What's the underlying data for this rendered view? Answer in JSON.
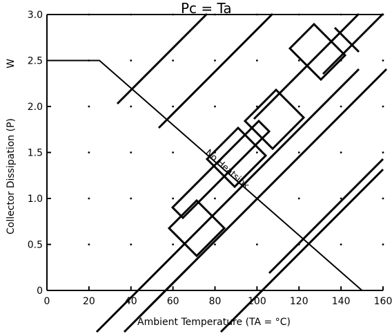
{
  "chart_data": {
    "type": "line",
    "title": "Pc  =  Ta",
    "xlabel": "Ambient Temperature (TA = °C)",
    "ylabel": "Collector Dissipation (P)",
    "ylabel_unit": "W",
    "xlim": [
      0,
      160
    ],
    "ylim": [
      0,
      3.0
    ],
    "x_ticks": [
      "0",
      "20",
      "40",
      "60",
      "80",
      "100",
      "120",
      "140",
      "160"
    ],
    "y_ticks": [
      "0",
      "0.5",
      "1.0",
      "1.5",
      "2.0",
      "2.5",
      "3.0"
    ],
    "grid": "dotted",
    "series": [
      {
        "name": "",
        "x": [
          0,
          25,
          150
        ],
        "y": [
          2.5,
          2.5,
          0
        ]
      },
      {
        "name": "",
        "x": [
          0,
          160
        ],
        "y": [
          3.0,
          3.0
        ]
      }
    ],
    "annotation": "No Heatsink",
    "annotation_x": 85,
    "annotation_y": 1.25,
    "watermark": "DISCONTINUED"
  }
}
